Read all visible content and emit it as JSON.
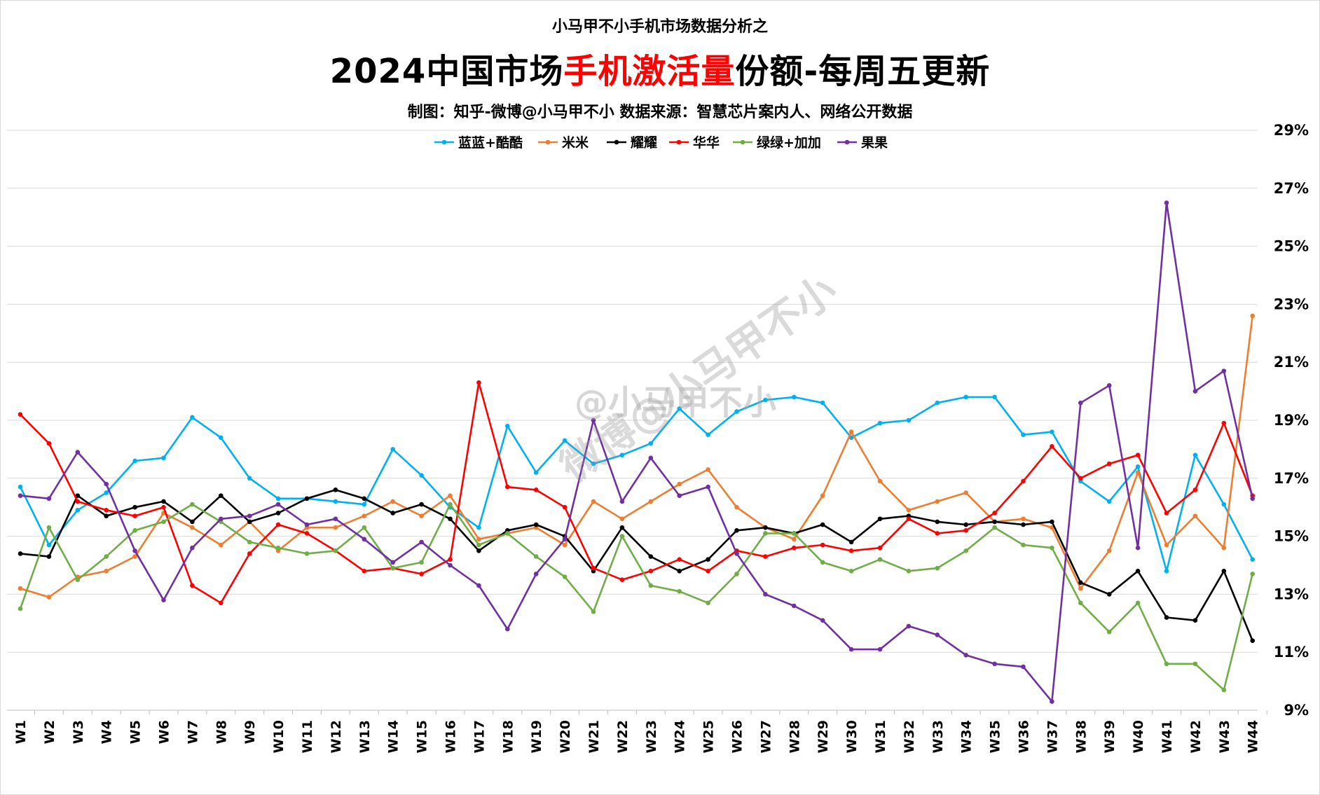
{
  "header": {
    "supertitle": "小马甲不小手机市场数据分析之",
    "title_prefix": "2024中国市场",
    "title_highlight": "手机激活量",
    "title_suffix": "份额-每周五更新",
    "subtitle": "制图：知乎-微博@小马甲不小   数据来源：智慧芯片案内人、网络公开数据"
  },
  "watermarks": {
    "diagonal": "微博@小马甲不小",
    "plain": "@小马甲不小"
  },
  "colors": {
    "highlight": "#ff0000",
    "grid": "#d9d9d9",
    "axis": "#bfbfbf"
  },
  "chart_data": {
    "type": "line",
    "title": "2024中国市场手机激活量份额-每周五更新",
    "xlabel": "",
    "ylabel": "",
    "ylim": [
      9,
      29
    ],
    "yticks": [
      9,
      11,
      13,
      15,
      17,
      19,
      21,
      23,
      25,
      27,
      29
    ],
    "ytick_suffix": "%",
    "y_axis_side": "right",
    "legend_position": "top-center",
    "grid": true,
    "categories": [
      "W1",
      "W2",
      "W3",
      "W4",
      "W5",
      "W6",
      "W7",
      "W8",
      "W9",
      "W10",
      "W11",
      "W12",
      "W13",
      "W14",
      "W15",
      "W16",
      "W17",
      "W18",
      "W19",
      "W20",
      "W21",
      "W22",
      "W23",
      "W24",
      "W25",
      "W26",
      "W27",
      "W28",
      "W29",
      "W30",
      "W31",
      "W32",
      "W33",
      "W34",
      "W35",
      "W36",
      "W37",
      "W38",
      "W39",
      "W40",
      "W41",
      "W42",
      "W43",
      "W44"
    ],
    "series": [
      {
        "name": "蓝蓝+酷酷",
        "color": "#00b0f0",
        "values": [
          16.7,
          14.7,
          15.9,
          16.5,
          17.6,
          17.7,
          19.1,
          18.4,
          17.0,
          16.3,
          16.3,
          16.2,
          16.1,
          18.0,
          17.1,
          16.0,
          15.3,
          18.8,
          17.2,
          18.3,
          17.5,
          17.8,
          18.2,
          19.4,
          18.5,
          19.3,
          19.7,
          19.8,
          19.6,
          18.4,
          18.9,
          19.0,
          19.6,
          19.8,
          19.8,
          18.5,
          18.6,
          16.9,
          16.2,
          17.4,
          13.8,
          17.8,
          16.1,
          14.2
        ]
      },
      {
        "name": "米米",
        "color": "#ed7d31",
        "values": [
          13.2,
          12.9,
          13.6,
          13.8,
          14.3,
          15.8,
          15.3,
          14.7,
          15.5,
          14.5,
          15.3,
          15.3,
          15.7,
          16.2,
          15.7,
          16.4,
          14.9,
          15.1,
          15.3,
          14.7,
          16.2,
          15.6,
          16.2,
          16.8,
          17.3,
          16.0,
          15.3,
          14.9,
          16.4,
          18.6,
          16.9,
          15.9,
          16.2,
          16.5,
          15.5,
          15.6,
          15.3,
          13.2,
          14.5,
          17.2,
          14.7,
          15.7,
          14.6,
          22.6
        ]
      },
      {
        "name": "耀耀",
        "color": "#000000",
        "values": [
          14.4,
          14.3,
          16.4,
          15.7,
          16.0,
          16.2,
          15.5,
          16.4,
          15.5,
          15.8,
          16.3,
          16.6,
          16.3,
          15.8,
          16.1,
          15.6,
          14.5,
          15.2,
          15.4,
          15.0,
          13.8,
          15.3,
          14.3,
          13.8,
          14.2,
          15.2,
          15.3,
          15.1,
          15.4,
          14.8,
          15.6,
          15.7,
          15.5,
          15.4,
          15.5,
          15.4,
          15.5,
          13.4,
          13.0,
          13.8,
          12.2,
          12.1,
          13.8,
          11.4
        ]
      },
      {
        "name": "华华",
        "color": "#ff0000",
        "values": [
          19.2,
          18.2,
          16.2,
          15.9,
          15.7,
          16.0,
          13.3,
          12.7,
          14.4,
          15.4,
          15.1,
          14.5,
          13.8,
          13.9,
          13.7,
          14.2,
          20.3,
          16.7,
          16.6,
          16.0,
          13.9,
          13.5,
          13.8,
          14.2,
          13.8,
          14.5,
          14.3,
          14.6,
          14.7,
          14.5,
          14.6,
          15.6,
          15.1,
          15.2,
          15.8,
          16.9,
          18.1,
          17.0,
          17.5,
          17.8,
          15.8,
          16.6,
          18.9,
          16.4
        ]
      },
      {
        "name": "绿绿+加加",
        "color": "#70ad47",
        "values": [
          12.5,
          15.3,
          13.5,
          14.3,
          15.2,
          15.5,
          16.1,
          15.5,
          14.8,
          14.6,
          14.4,
          14.5,
          15.3,
          13.9,
          14.1,
          16.1,
          14.7,
          15.1,
          14.3,
          13.6,
          12.4,
          15.0,
          13.3,
          13.1,
          12.7,
          13.7,
          15.1,
          15.1,
          14.1,
          13.8,
          14.2,
          13.8,
          13.9,
          14.5,
          15.3,
          14.7,
          14.6,
          12.7,
          11.7,
          12.7,
          10.6,
          10.6,
          9.7,
          13.7
        ]
      },
      {
        "name": "果果",
        "color": "#7030a0",
        "values": [
          16.4,
          16.3,
          17.9,
          16.8,
          14.5,
          12.8,
          14.6,
          15.6,
          15.7,
          16.1,
          15.4,
          15.6,
          14.9,
          14.1,
          14.8,
          14.0,
          13.3,
          11.8,
          13.7,
          14.9,
          19.0,
          16.2,
          17.7,
          16.4,
          16.7,
          14.4,
          13.0,
          12.6,
          12.1,
          11.1,
          11.1,
          11.9,
          11.6,
          10.9,
          10.6,
          10.5,
          9.3,
          19.6,
          20.2,
          14.6,
          26.5,
          20.0,
          20.7,
          16.3
        ]
      }
    ]
  }
}
